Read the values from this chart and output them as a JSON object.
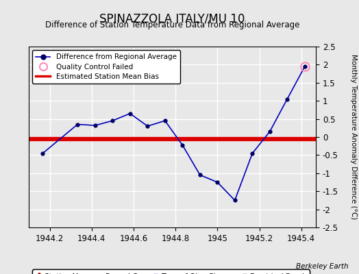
{
  "title": "SPINAZZOLA ITALY/MU 10",
  "subtitle": "Difference of Station Temperature Data from Regional Average",
  "ylabel": "Monthly Temperature Anomaly Difference (°C)",
  "xlabel_ticks": [
    1944.2,
    1944.4,
    1944.6,
    1944.8,
    1945.0,
    1945.2,
    1945.4
  ],
  "xlabel_labels": [
    "1944.2",
    "1944.4",
    "1944.6",
    "1944.8",
    "1945",
    "1945.2",
    "1945.4"
  ],
  "xlim": [
    1944.1,
    1945.47
  ],
  "ylim": [
    -2.5,
    2.5
  ],
  "yticks": [
    -2.5,
    -2.0,
    -1.5,
    -1.0,
    -0.5,
    0.0,
    0.5,
    1.0,
    1.5,
    2.0,
    2.5
  ],
  "ytick_labels": [
    "-2.5",
    "-2",
    "-1.5",
    "-1",
    "-0.5",
    "0",
    "0.5",
    "1",
    "1.5",
    "2",
    "2.5"
  ],
  "main_line_color": "#0000bb",
  "dot_color": "#000066",
  "bias_line_color": "#dd0000",
  "bias_value": -0.05,
  "x_data": [
    1944.167,
    1944.333,
    1944.417,
    1944.5,
    1944.583,
    1944.667,
    1944.75,
    1944.833,
    1944.917,
    1945.0,
    1945.083,
    1945.167,
    1945.25,
    1945.333,
    1945.417
  ],
  "y_data": [
    -0.45,
    0.35,
    0.32,
    0.45,
    0.65,
    0.3,
    0.45,
    -0.22,
    -1.05,
    -1.25,
    -1.75,
    -0.45,
    0.15,
    1.05,
    1.95
  ],
  "qc_failed_x": [
    1945.417
  ],
  "qc_failed_y": [
    1.95
  ],
  "background_color": "#e8e8e8",
  "grid_color": "#ffffff",
  "watermark": "Berkeley Earth"
}
